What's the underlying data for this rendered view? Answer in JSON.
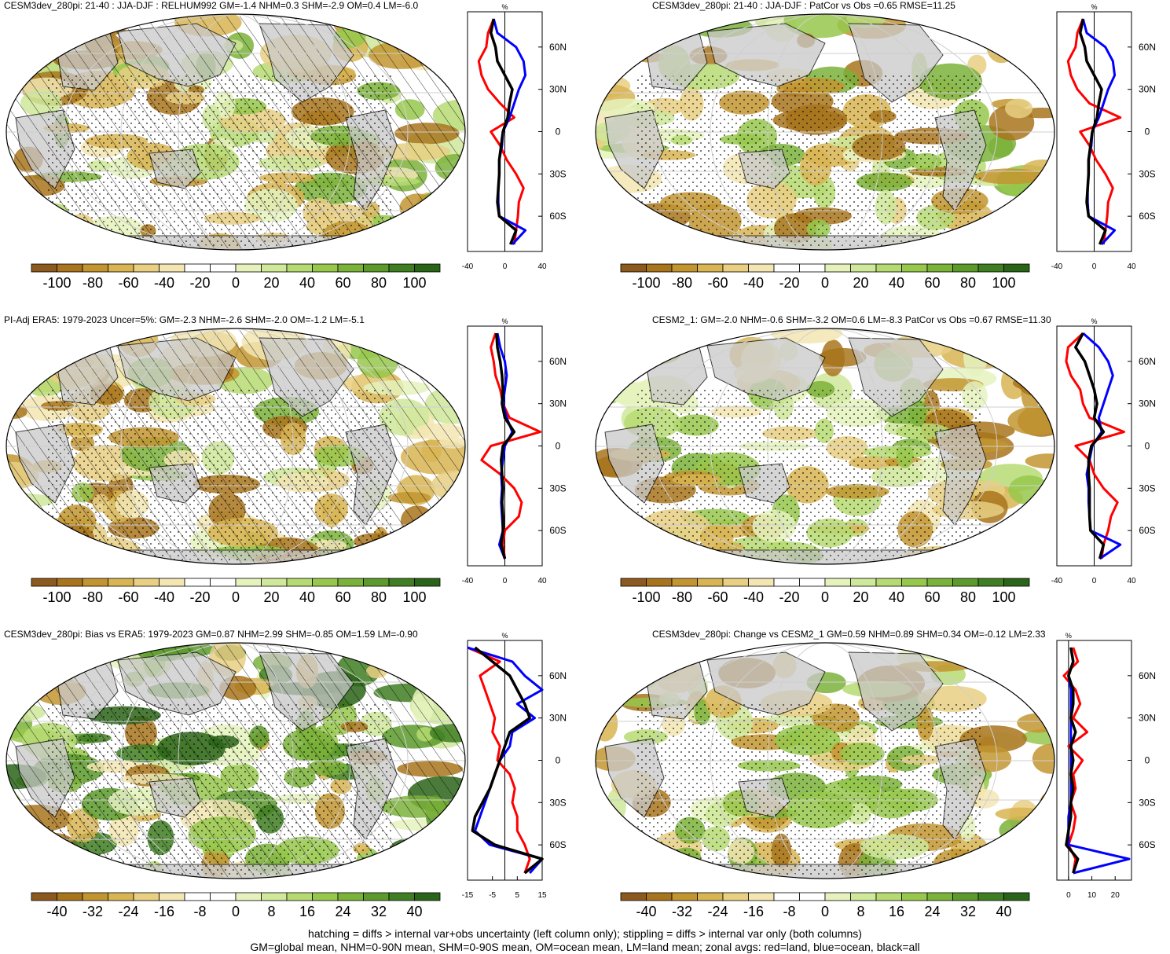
{
  "panels": [
    {
      "title": "CESM3dev_280pi: 21-40 : JJA-DJF : RELHUM992 GM=-1.4 NHM=0.3 SHM=-2.9 OM=0.4 LM=-6.0",
      "hatching": true,
      "wet": 0.55,
      "colorbar": [
        "-100",
        "-80",
        "-60",
        "-40",
        "-20",
        "0",
        "20",
        "40",
        "60",
        "80",
        "100"
      ],
      "zonal": {
        "unit": "%",
        "xlim": [
          -40,
          40
        ],
        "xticks": [
          "-40",
          "0",
          "40"
        ],
        "lat_ticks": [
          "60N",
          "30N",
          "0",
          "30S",
          "60S"
        ],
        "lat_values": [
          60,
          30,
          0,
          -30,
          -60
        ]
      }
    },
    {
      "title": "CESM3dev_280pi: 21-40 : JJA-DJF : PatCor vs Obs =0.65 RMSE=11.25",
      "hatching": false,
      "wet": 0.45,
      "colorbar": [
        "-100",
        "-80",
        "-60",
        "-40",
        "-20",
        "0",
        "20",
        "40",
        "60",
        "80",
        "100"
      ],
      "zonal": {
        "unit": "%",
        "xlim": [
          -40,
          40
        ],
        "xticks": [
          "-40",
          "0",
          "40"
        ],
        "lat_ticks": [
          "60N",
          "30N",
          "0",
          "30S",
          "60S"
        ],
        "lat_values": [
          60,
          30,
          0,
          -30,
          -60
        ]
      }
    },
    {
      "title": "PI-Adj ERA5: 1979-2023 Uncer=5%: GM=-2.3 NHM=-2.6 SHM=-2.0 OM=-1.2 LM=-5.1",
      "hatching": true,
      "wet": 0.35,
      "colorbar": [
        "-100",
        "-80",
        "-60",
        "-40",
        "-20",
        "0",
        "20",
        "40",
        "60",
        "80",
        "100"
      ],
      "zonal": {
        "unit": "%",
        "xlim": [
          -40,
          40
        ],
        "xticks": [
          "-40",
          "0",
          "40"
        ],
        "lat_ticks": [
          "60N",
          "30N",
          "0",
          "30S",
          "60S"
        ],
        "lat_values": [
          60,
          30,
          0,
          -30,
          -60
        ]
      }
    },
    {
      "title": "CESM2_1: GM=-2.0 NHM=-0.6 SHM=-3.2 OM=0.6 LM=-8.3 PatCor vs Obs =0.67 RMSE=11.30",
      "hatching": false,
      "wet": 0.45,
      "colorbar": [
        "-100",
        "-80",
        "-60",
        "-40",
        "-20",
        "0",
        "20",
        "40",
        "60",
        "80",
        "100"
      ],
      "zonal": {
        "unit": "%",
        "xlim": [
          -40,
          40
        ],
        "xticks": [
          "-40",
          "0",
          "40"
        ],
        "lat_ticks": [
          "60N",
          "30N",
          "0",
          "30S",
          "60S"
        ],
        "lat_values": [
          60,
          30,
          0,
          -30,
          -60
        ]
      }
    },
    {
      "title": "CESM3dev_280pi: Bias vs ERA5: 1979-2023 GM=0.87 NHM=2.99 SHM=-0.85 OM=1.59 LM=-0.90",
      "hatching": true,
      "wet": 0.75,
      "colorbar": [
        "-40",
        "-32",
        "-24",
        "-16",
        "-8",
        "0",
        "8",
        "16",
        "24",
        "32",
        "40"
      ],
      "zonal": {
        "unit": "%",
        "xlim": [
          -15,
          15
        ],
        "xticks": [
          "-15",
          "-5",
          "5",
          "15"
        ],
        "lat_ticks": [
          "60N",
          "30N",
          "0",
          "30S",
          "60S"
        ],
        "lat_values": [
          60,
          30,
          0,
          -30,
          -60
        ]
      }
    },
    {
      "title": "CESM3dev_280pi: Change vs CESM2_1 GM=0.59 NHM=0.89 SHM=0.34 OM=-0.12 LM=2.33",
      "hatching": false,
      "wet": 0.5,
      "colorbar": [
        "-40",
        "-32",
        "-24",
        "-16",
        "-8",
        "0",
        "8",
        "16",
        "24",
        "32",
        "40"
      ],
      "zonal": {
        "unit": "%",
        "xlim": [
          -5,
          27
        ],
        "xticks": [
          "0",
          "10",
          "20"
        ],
        "lat_ticks": [
          "60N",
          "30N",
          "0",
          "30S",
          "60S"
        ],
        "lat_values": [
          60,
          30,
          0,
          -30,
          -60
        ]
      }
    }
  ],
  "colors": {
    "land": "#c8c8c8",
    "hatch": "#000000",
    "stipple": "#000000",
    "land_line": "#ff0000",
    "ocean_line": "#0000ff",
    "all_line": "#000000",
    "scale": [
      "#8c5a1e",
      "#a8741c",
      "#c29530",
      "#d8b452",
      "#e8cf82",
      "#f3e6b3",
      "#ffffff",
      "#ffffff",
      "#e5f2bd",
      "#cfe89a",
      "#b6da72",
      "#97c84c",
      "#7bb239",
      "#5c9a2b",
      "#3f7e22",
      "#2a6418"
    ]
  },
  "chart_data": [
    {
      "type": "line",
      "title": "CESM3dev_280pi: 21-40 : JJA-DJF : RELHUM992 GM=-1.4 NHM=0.3 SHM=-2.9 OM=0.4 LM=-6.0",
      "xlabel": "%",
      "xlim": [
        -40,
        40
      ],
      "y": [
        80,
        70,
        60,
        50,
        40,
        30,
        20,
        10,
        0,
        -10,
        -20,
        -30,
        -40,
        -50,
        -60,
        -70,
        -80
      ],
      "series": [
        {
          "values": [
            -12,
            -18,
            -20,
            -28,
            -25,
            -18,
            -5,
            10,
            -15,
            -5,
            2,
            12,
            20,
            15,
            14,
            12,
            10
          ]
        },
        {
          "values": [
            -12,
            -8,
            12,
            20,
            22,
            15,
            10,
            5,
            -2,
            -3,
            -6,
            -6,
            -7,
            -7,
            -6,
            22,
            8
          ]
        },
        {
          "values": [
            -12,
            -15,
            -10,
            -8,
            0,
            8,
            5,
            3,
            -2,
            -4,
            -6,
            -6,
            -7,
            -8,
            -6,
            12,
            6
          ]
        }
      ]
    },
    {
      "type": "line",
      "title": "CESM3dev_280pi: 21-40 : JJA-DJF : PatCor vs Obs =0.65 RMSE=11.25",
      "xlabel": "%",
      "xlim": [
        -40,
        40
      ],
      "y": [
        80,
        70,
        60,
        50,
        40,
        30,
        20,
        10,
        0,
        -10,
        -20,
        -30,
        -40,
        -50,
        -60,
        -70,
        -80
      ],
      "series": [
        {
          "values": [
            -12,
            -18,
            -20,
            -28,
            -25,
            -18,
            -5,
            28,
            -15,
            -5,
            2,
            12,
            20,
            15,
            14,
            12,
            10
          ]
        },
        {
          "values": [
            -12,
            -8,
            12,
            20,
            22,
            15,
            10,
            5,
            -2,
            -3,
            -6,
            -6,
            -7,
            -7,
            -6,
            22,
            8
          ]
        },
        {
          "values": [
            -12,
            -15,
            -10,
            -8,
            0,
            8,
            5,
            3,
            -2,
            -4,
            -6,
            -6,
            -7,
            -8,
            -6,
            12,
            6
          ]
        }
      ]
    },
    {
      "type": "line",
      "title": "PI-Adj ERA5: 1979-2023 Uncer=5%: GM=-2.3 NHM=-2.6 SHM=-2.0 OM=-1.2 LM=-5.1",
      "xlabel": "%",
      "xlim": [
        -40,
        40
      ],
      "y": [
        80,
        70,
        60,
        50,
        40,
        30,
        20,
        10,
        0,
        -10,
        -20,
        -30,
        -40,
        -50,
        -60,
        -70,
        -80
      ],
      "series": [
        {
          "values": [
            -10,
            -15,
            -12,
            -10,
            -5,
            -2,
            5,
            38,
            -15,
            -25,
            -5,
            10,
            18,
            15,
            0,
            -2,
            0
          ]
        },
        {
          "values": [
            -8,
            -5,
            0,
            2,
            0,
            -2,
            2,
            8,
            0,
            -2,
            -4,
            -3,
            -4,
            -3,
            -2,
            -6,
            0
          ]
        },
        {
          "values": [
            -9,
            -8,
            -5,
            -3,
            -2,
            -3,
            0,
            10,
            -2,
            -4,
            -3,
            -2,
            -3,
            -2,
            -2,
            -4,
            0
          ]
        }
      ]
    },
    {
      "type": "line",
      "title": "CESM2_1: GM=-2.0 NHM=-0.6 SHM=-3.2 OM=0.6 LM=-8.3 PatCor vs Obs =0.67 RMSE=11.30",
      "xlabel": "%",
      "xlim": [
        -40,
        40
      ],
      "y": [
        80,
        70,
        60,
        50,
        40,
        30,
        20,
        10,
        0,
        -10,
        -20,
        -30,
        -40,
        -50,
        -60,
        -70,
        -80
      ],
      "series": [
        {
          "values": [
            -12,
            -28,
            -30,
            -25,
            -15,
            -12,
            -5,
            32,
            -20,
            -5,
            0,
            10,
            25,
            18,
            15,
            10,
            8
          ]
        },
        {
          "values": [
            -12,
            5,
            15,
            20,
            15,
            10,
            5,
            8,
            -2,
            -5,
            -8,
            -6,
            -6,
            -5,
            -4,
            28,
            6
          ]
        },
        {
          "values": [
            -12,
            -20,
            -10,
            -5,
            0,
            3,
            0,
            10,
            -3,
            -6,
            -6,
            -5,
            -5,
            -5,
            -4,
            10,
            6
          ]
        }
      ]
    },
    {
      "type": "line",
      "title": "CESM3dev_280pi: Bias vs ERA5: 1979-2023 GM=0.87 NHM=2.99 SHM=-0.85 OM=1.59 LM=-0.90",
      "xlabel": "%",
      "xlim": [
        -15,
        15
      ],
      "y": [
        80,
        70,
        60,
        50,
        40,
        30,
        20,
        10,
        0,
        -10,
        -20,
        -30,
        -40,
        -50,
        -60,
        -70,
        -80
      ],
      "series": [
        {
          "values": [
            -15,
            -2,
            -10,
            -8,
            -6,
            -4,
            -5,
            -2,
            -3,
            2,
            4,
            3,
            5,
            5,
            8,
            10,
            8
          ]
        },
        {
          "values": [
            -15,
            3,
            8,
            15,
            5,
            12,
            3,
            2,
            -2,
            -4,
            -6,
            -8,
            -10,
            -12,
            -6,
            15,
            10
          ]
        },
        {
          "values": [
            -12,
            -5,
            2,
            5,
            8,
            10,
            2,
            0,
            -2,
            -4,
            -6,
            -9,
            -12,
            -13,
            -4,
            15,
            8
          ]
        }
      ]
    },
    {
      "type": "line",
      "title": "CESM3dev_280pi: Change vs CESM2_1 GM=0.59 NHM=0.89 SHM=0.34 OM=-0.12 LM=2.33",
      "xlabel": "%",
      "xlim": [
        -5,
        27
      ],
      "y": [
        80,
        70,
        60,
        50,
        40,
        30,
        20,
        10,
        0,
        -10,
        -20,
        -30,
        -40,
        -50,
        -60,
        -70,
        -80
      ],
      "series": [
        {
          "values": [
            2,
            4,
            -2,
            3,
            5,
            2,
            8,
            0,
            6,
            2,
            3,
            1,
            3,
            2,
            0,
            3,
            2
          ]
        },
        {
          "values": [
            1,
            2,
            0,
            1,
            1,
            1,
            1,
            1,
            1,
            1,
            1,
            1,
            0,
            0,
            0,
            26,
            2
          ]
        },
        {
          "values": [
            1,
            2,
            0,
            2,
            2,
            1,
            3,
            1,
            2,
            1,
            2,
            1,
            1,
            0,
            -1,
            4,
            2
          ]
        }
      ]
    }
  ],
  "footer": {
    "line1": "hatching = diffs > internal var+obs uncertainty (left column only); stippling = diffs > internal var only (both columns)",
    "line2": "GM=global mean, NHM=0-90N mean, SHM=0-90S mean, OM=ocean mean, LM=land mean; zonal avgs: red=land, blue=ocean, black=all"
  }
}
